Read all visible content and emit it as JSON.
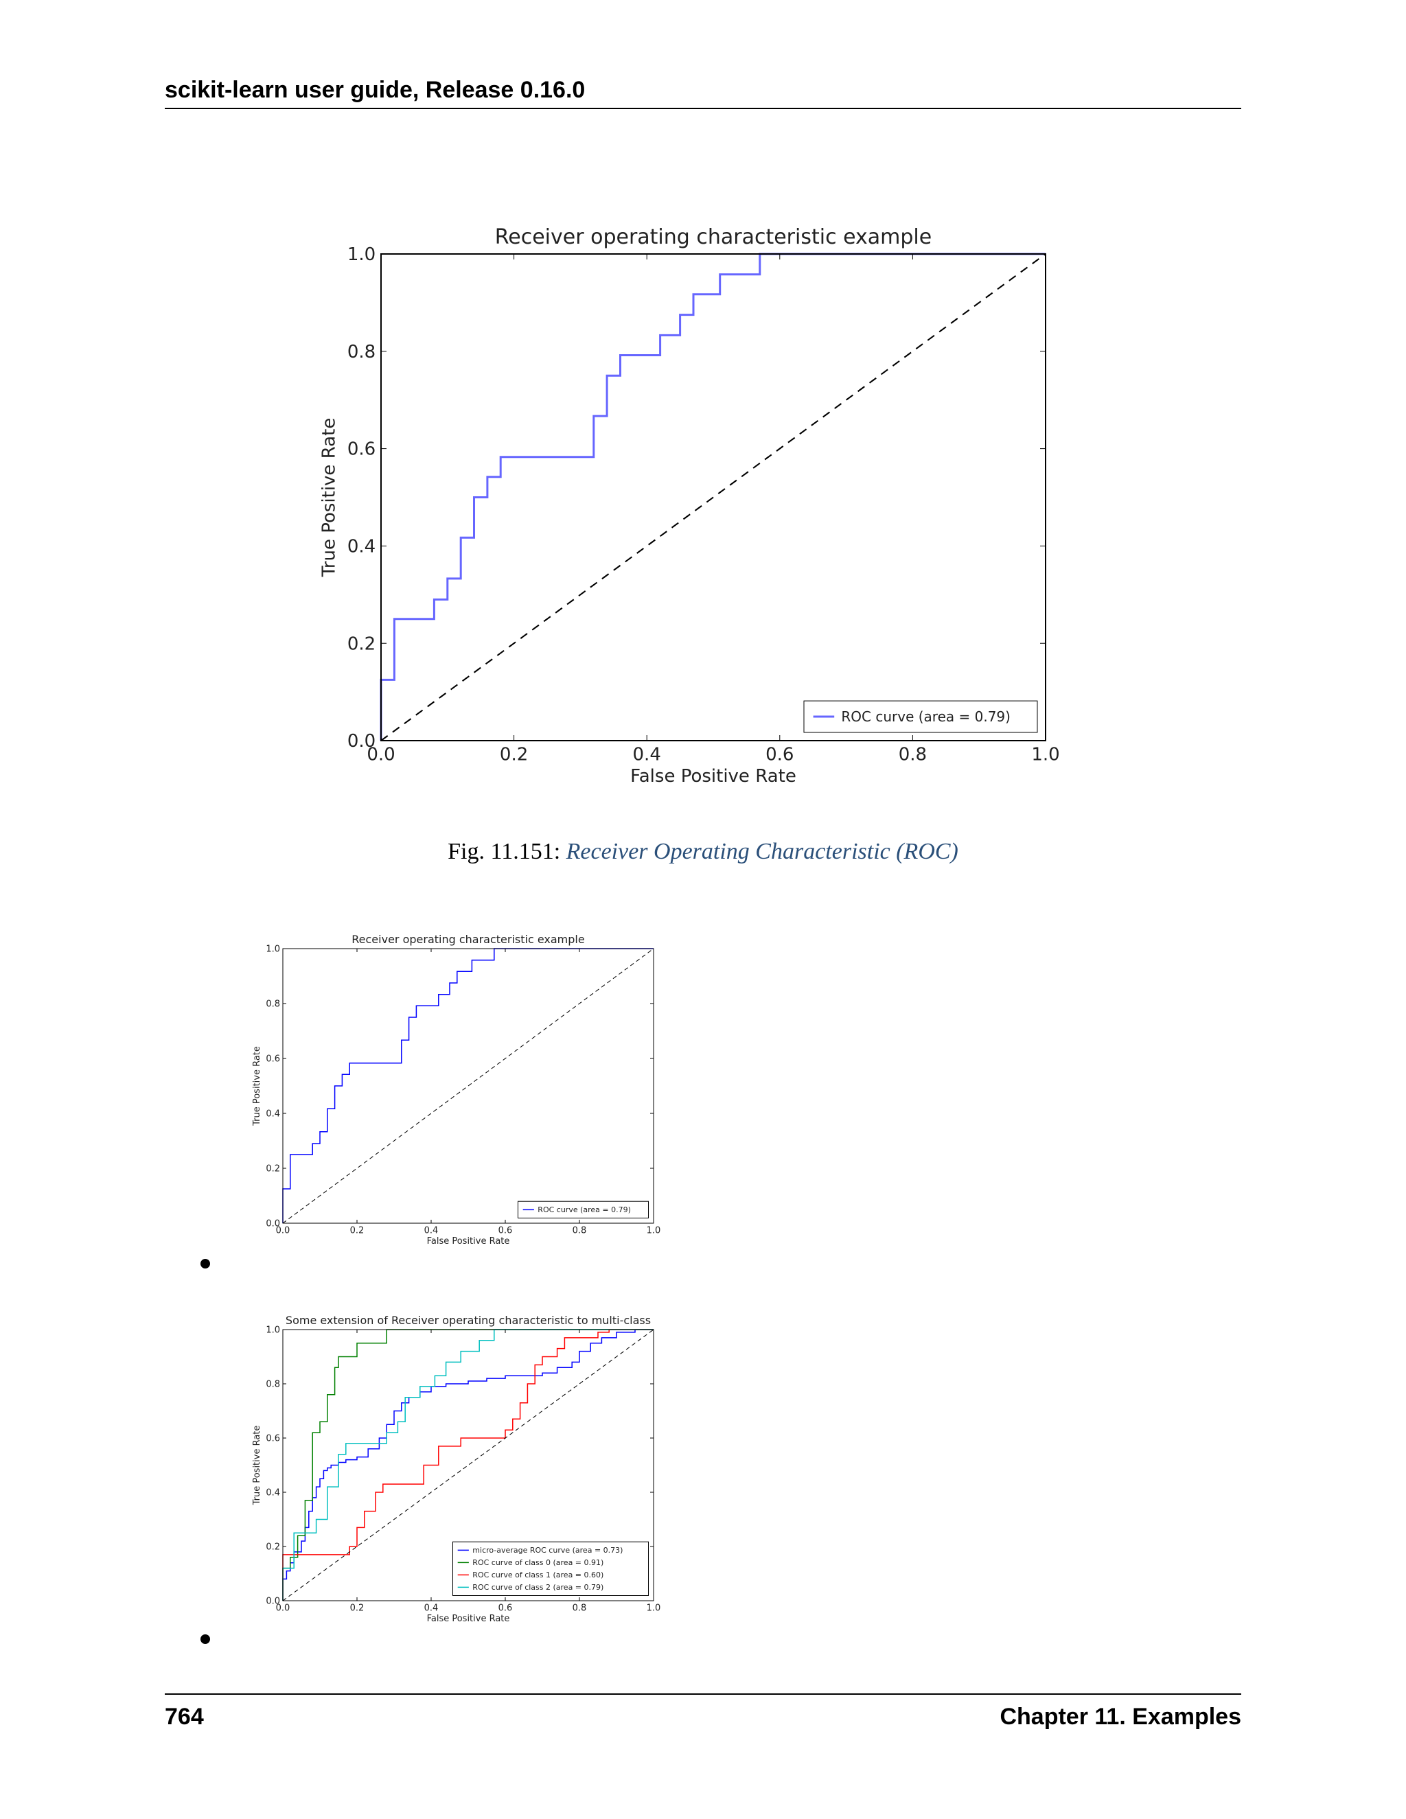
{
  "page": {
    "header": "scikit-learn user guide, Release 0.16.0",
    "footer_page": "764",
    "footer_chapter": "Chapter 11.  Examples",
    "caption_label": "Fig.  11.151: ",
    "caption_link": "Receiver Operating Characteristic (ROC)"
  },
  "chart_data": [
    {
      "type": "line",
      "title": "Receiver operating characteristic example",
      "xlabel": "False Positive Rate",
      "ylabel": "True Positive Rate",
      "xlim": [
        0,
        1
      ],
      "ylim": [
        0,
        1
      ],
      "xticks": [
        "0.0",
        "0.2",
        "0.4",
        "0.6",
        "0.8",
        "1.0"
      ],
      "yticks": [
        "0.0",
        "0.2",
        "0.4",
        "0.6",
        "0.8",
        "1.0"
      ],
      "legend": "lower-right",
      "series": [
        {
          "name": "ROC curve (area = 0.79)",
          "color": "#0000ff",
          "x": [
            0,
            0,
            0.02,
            0.02,
            0.08,
            0.08,
            0.1,
            0.1,
            0.12,
            0.12,
            0.14,
            0.14,
            0.16,
            0.16,
            0.18,
            0.18,
            0.32,
            0.32,
            0.34,
            0.34,
            0.36,
            0.36,
            0.42,
            0.42,
            0.45,
            0.45,
            0.47,
            0.47,
            0.51,
            0.51,
            0.57,
            0.57,
            1.0
          ],
          "y": [
            0,
            0.125,
            0.125,
            0.25,
            0.25,
            0.29,
            0.29,
            0.333,
            0.333,
            0.417,
            0.417,
            0.5,
            0.5,
            0.542,
            0.542,
            0.583,
            0.583,
            0.667,
            0.667,
            0.75,
            0.75,
            0.792,
            0.792,
            0.833,
            0.833,
            0.875,
            0.875,
            0.917,
            0.917,
            0.958,
            0.958,
            1.0,
            1.0
          ]
        },
        {
          "color": "#000000",
          "dashed": true,
          "x": [
            0,
            1
          ],
          "y": [
            0,
            1
          ]
        }
      ]
    },
    {
      "type": "line",
      "title": "Receiver operating characteristic example",
      "xlabel": "False Positive Rate",
      "ylabel": "True Positive Rate",
      "xlim": [
        0,
        1
      ],
      "ylim": [
        0,
        1
      ],
      "xticks": [
        "0.0",
        "0.2",
        "0.4",
        "0.6",
        "0.8",
        "1.0"
      ],
      "yticks": [
        "0.0",
        "0.2",
        "0.4",
        "0.6",
        "0.8",
        "1.0"
      ],
      "legend": "lower-right",
      "series": [
        {
          "name": "ROC curve (area = 0.79)",
          "color": "#0000ff",
          "x": [
            0,
            0,
            0.02,
            0.02,
            0.08,
            0.08,
            0.1,
            0.1,
            0.12,
            0.12,
            0.14,
            0.14,
            0.16,
            0.16,
            0.18,
            0.18,
            0.32,
            0.32,
            0.34,
            0.34,
            0.36,
            0.36,
            0.42,
            0.42,
            0.45,
            0.45,
            0.47,
            0.47,
            0.51,
            0.51,
            0.57,
            0.57,
            1.0
          ],
          "y": [
            0,
            0.125,
            0.125,
            0.25,
            0.25,
            0.29,
            0.29,
            0.333,
            0.333,
            0.417,
            0.417,
            0.5,
            0.5,
            0.542,
            0.542,
            0.583,
            0.583,
            0.667,
            0.667,
            0.75,
            0.75,
            0.792,
            0.792,
            0.833,
            0.833,
            0.875,
            0.875,
            0.917,
            0.917,
            0.958,
            0.958,
            1.0,
            1.0
          ]
        },
        {
          "color": "#000000",
          "dashed": true,
          "x": [
            0,
            1
          ],
          "y": [
            0,
            1
          ]
        }
      ]
    },
    {
      "type": "line",
      "title": "Some extension of Receiver operating characteristic to multi-class",
      "xlabel": "False Positive Rate",
      "ylabel": "True Positive Rate",
      "xlim": [
        0,
        1
      ],
      "ylim": [
        0,
        1
      ],
      "xticks": [
        "0.0",
        "0.2",
        "0.4",
        "0.6",
        "0.8",
        "1.0"
      ],
      "yticks": [
        "0.0",
        "0.2",
        "0.4",
        "0.6",
        "0.8",
        "1.0"
      ],
      "legend": "lower-right",
      "series": [
        {
          "name": "micro-average ROC curve (area = 0.73)",
          "color": "#0000ff",
          "x": [
            0,
            0,
            0.01,
            0.01,
            0.02,
            0.02,
            0.03,
            0.03,
            0.05,
            0.05,
            0.06,
            0.06,
            0.07,
            0.07,
            0.08,
            0.08,
            0.09,
            0.09,
            0.1,
            0.1,
            0.11,
            0.11,
            0.12,
            0.12,
            0.13,
            0.13,
            0.15,
            0.15,
            0.17,
            0.17,
            0.2,
            0.2,
            0.23,
            0.23,
            0.26,
            0.26,
            0.28,
            0.28,
            0.3,
            0.3,
            0.32,
            0.32,
            0.34,
            0.34,
            0.37,
            0.37,
            0.4,
            0.4,
            0.44,
            0.44,
            0.5,
            0.5,
            0.55,
            0.55,
            0.6,
            0.6,
            0.7,
            0.7,
            0.74,
            0.74,
            0.78,
            0.78,
            0.8,
            0.8,
            0.83,
            0.83,
            0.86,
            0.86,
            0.9,
            0.9,
            0.95,
            0.95,
            1.0
          ],
          "y": [
            0,
            0.08,
            0.08,
            0.11,
            0.11,
            0.14,
            0.14,
            0.18,
            0.18,
            0.22,
            0.22,
            0.27,
            0.27,
            0.33,
            0.33,
            0.38,
            0.38,
            0.42,
            0.42,
            0.45,
            0.45,
            0.48,
            0.48,
            0.49,
            0.49,
            0.5,
            0.5,
            0.51,
            0.51,
            0.52,
            0.52,
            0.53,
            0.53,
            0.56,
            0.56,
            0.6,
            0.6,
            0.65,
            0.65,
            0.7,
            0.7,
            0.73,
            0.73,
            0.75,
            0.75,
            0.77,
            0.77,
            0.79,
            0.79,
            0.8,
            0.8,
            0.81,
            0.81,
            0.82,
            0.82,
            0.83,
            0.83,
            0.84,
            0.84,
            0.86,
            0.86,
            0.88,
            0.88,
            0.92,
            0.92,
            0.95,
            0.95,
            0.97,
            0.97,
            0.99,
            0.99,
            1.0,
            1.0
          ]
        },
        {
          "name": "ROC curve of class 0 (area = 0.91)",
          "color": "#008000",
          "x": [
            0,
            0,
            0.02,
            0.02,
            0.04,
            0.04,
            0.06,
            0.06,
            0.08,
            0.08,
            0.1,
            0.1,
            0.12,
            0.12,
            0.14,
            0.14,
            0.15,
            0.15,
            0.2,
            0.2,
            0.28,
            0.28,
            1.0
          ],
          "y": [
            0,
            0.12,
            0.12,
            0.16,
            0.16,
            0.24,
            0.24,
            0.37,
            0.37,
            0.62,
            0.62,
            0.66,
            0.66,
            0.76,
            0.76,
            0.86,
            0.86,
            0.9,
            0.9,
            0.95,
            0.95,
            1.0,
            1.0
          ]
        },
        {
          "name": "ROC curve of class 1 (area = 0.60)",
          "color": "#ff0000",
          "x": [
            0,
            0,
            0.18,
            0.18,
            0.2,
            0.2,
            0.22,
            0.22,
            0.25,
            0.25,
            0.27,
            0.27,
            0.38,
            0.38,
            0.42,
            0.42,
            0.48,
            0.48,
            0.6,
            0.6,
            0.62,
            0.62,
            0.64,
            0.64,
            0.66,
            0.66,
            0.68,
            0.68,
            0.7,
            0.7,
            0.74,
            0.74,
            0.76,
            0.76,
            0.8,
            0.8,
            0.85,
            0.85,
            0.88,
            0.88,
            0.95,
            0.95,
            1.0
          ],
          "y": [
            0,
            0.17,
            0.17,
            0.2,
            0.2,
            0.27,
            0.27,
            0.33,
            0.33,
            0.4,
            0.4,
            0.43,
            0.43,
            0.5,
            0.5,
            0.57,
            0.57,
            0.6,
            0.6,
            0.63,
            0.63,
            0.67,
            0.67,
            0.73,
            0.73,
            0.8,
            0.8,
            0.87,
            0.87,
            0.9,
            0.9,
            0.93,
            0.93,
            0.97,
            0.97,
            0.97,
            0.97,
            0.99,
            0.99,
            1.0,
            1.0,
            1.0,
            1.0
          ]
        },
        {
          "name": "ROC curve of class 2 (area = 0.79)",
          "color": "#00bfbf",
          "x": [
            0,
            0,
            0.03,
            0.03,
            0.06,
            0.06,
            0.09,
            0.09,
            0.12,
            0.12,
            0.15,
            0.15,
            0.17,
            0.17,
            0.28,
            0.28,
            0.31,
            0.31,
            0.33,
            0.33,
            0.37,
            0.37,
            0.41,
            0.41,
            0.44,
            0.44,
            0.48,
            0.48,
            0.53,
            0.53,
            0.57,
            0.57,
            0.6,
            0.6,
            1.0
          ],
          "y": [
            0,
            0.12,
            0.12,
            0.25,
            0.25,
            0.25,
            0.25,
            0.3,
            0.3,
            0.42,
            0.42,
            0.54,
            0.54,
            0.58,
            0.58,
            0.62,
            0.62,
            0.66,
            0.66,
            0.75,
            0.75,
            0.79,
            0.79,
            0.83,
            0.83,
            0.88,
            0.88,
            0.92,
            0.92,
            0.96,
            0.96,
            1.0,
            1.0,
            1.0,
            1.0
          ]
        },
        {
          "color": "#000000",
          "dashed": true,
          "x": [
            0,
            1
          ],
          "y": [
            0,
            1
          ]
        }
      ]
    }
  ]
}
